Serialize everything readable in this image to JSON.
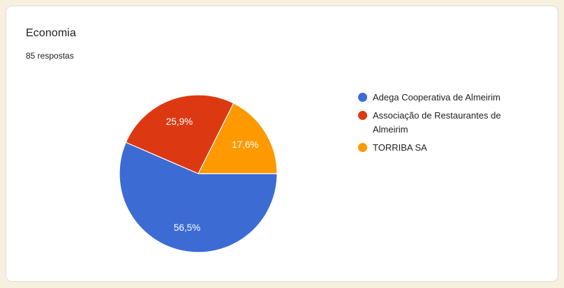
{
  "card": {
    "title": "Economia",
    "subtitle": "85 respostas"
  },
  "colors": {
    "page_background": "#F8F0DE",
    "card_background": "#FFFFFF",
    "card_border": "#DADCE0",
    "text": "#202124",
    "slice_label": "#FFFFFF"
  },
  "chart_data": {
    "type": "pie",
    "title": "Economia",
    "subtitle": "85 respostas",
    "total_responses": 85,
    "legend_position": "right",
    "start_angle_deg": 0,
    "direction": "clockwise",
    "slices": [
      {
        "label": "Adega Cooperativa de Almeirim",
        "pct": 56.5,
        "pct_label": "56,5%",
        "color": "#3C6BD4"
      },
      {
        "label": "Associação de Restaurantes de Almeirim",
        "pct": 25.9,
        "pct_label": "25,9%",
        "color": "#DC3912"
      },
      {
        "label": "TORRIBA SA",
        "pct": 17.6,
        "pct_label": "17,6%",
        "color": "#FF9900"
      }
    ]
  }
}
